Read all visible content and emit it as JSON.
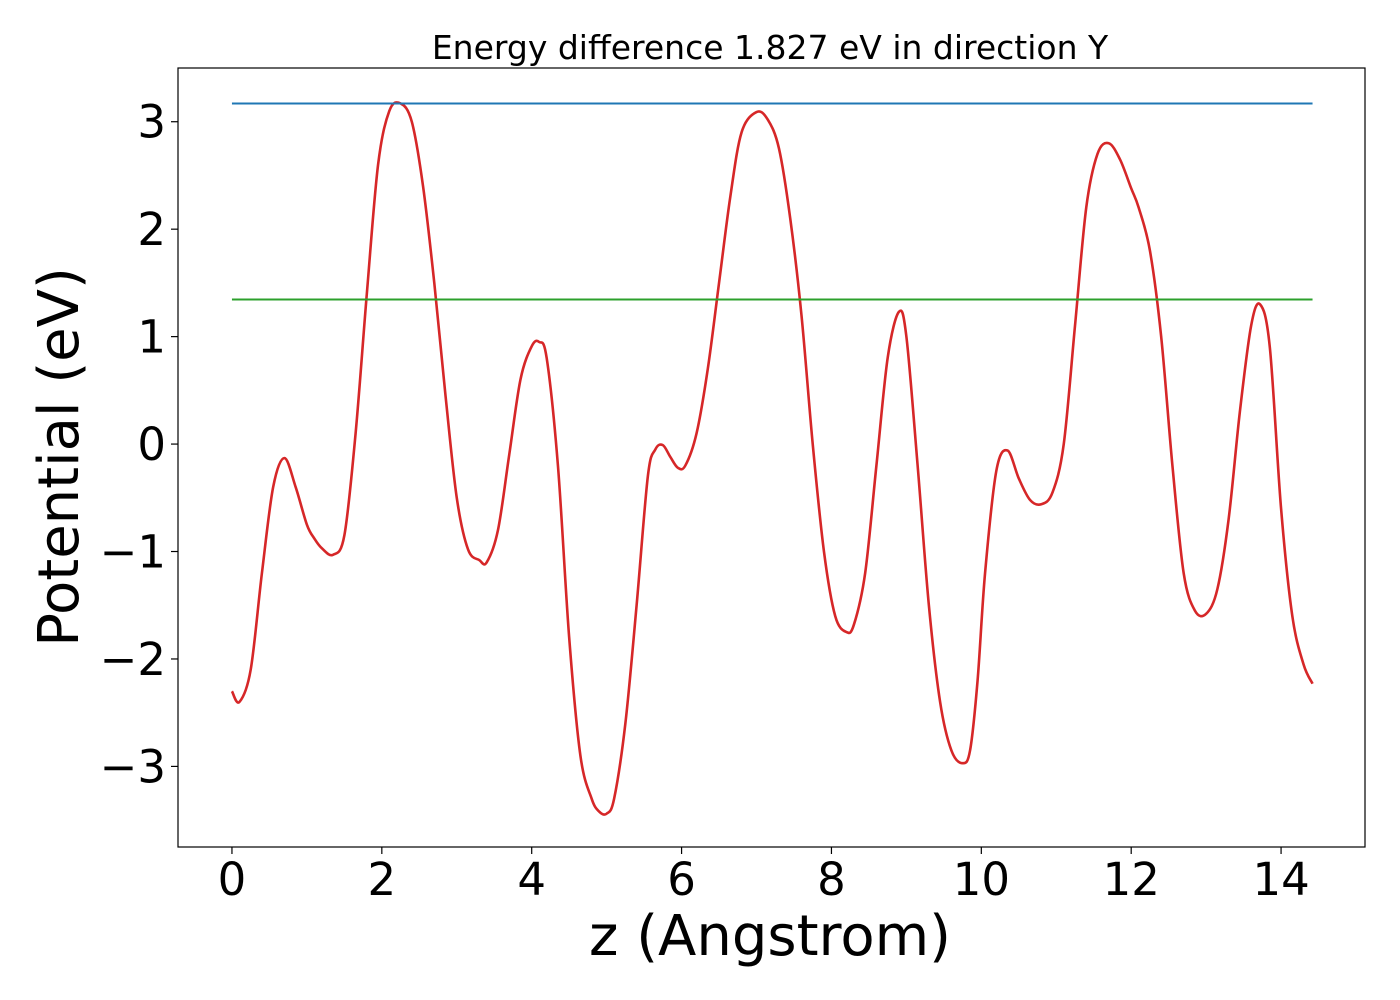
{
  "chart_data": {
    "type": "line",
    "title": "Energy difference 1.827 eV in direction Y",
    "xlabel": "z (Angstrom)",
    "ylabel": "Potential (eV)",
    "xlim": [
      -0.72,
      15.12
    ],
    "ylim": [
      -3.75,
      3.5
    ],
    "xticks": [
      0,
      2,
      4,
      6,
      8,
      10,
      12,
      14
    ],
    "yticks": [
      -3,
      -2,
      -1,
      0,
      1,
      2,
      3
    ],
    "xtick_labels": [
      "0",
      "2",
      "4",
      "6",
      "8",
      "10",
      "12",
      "14"
    ],
    "ytick_labels": [
      "−3",
      "−2",
      "−1",
      "0",
      "1",
      "2",
      "3"
    ],
    "grid": false,
    "series": [
      {
        "color": "#d62728",
        "x": [
          0,
          0.1,
          0.25,
          0.4,
          0.55,
          0.7,
          0.85,
          1.0,
          1.1,
          1.2,
          1.35,
          1.5,
          1.65,
          1.8,
          1.95,
          2.1,
          2.25,
          2.4,
          2.55,
          2.7,
          2.85,
          3.0,
          3.15,
          3.3,
          3.4,
          3.55,
          3.7,
          3.85,
          4.0,
          4.1,
          4.2,
          4.35,
          4.5,
          4.65,
          4.8,
          4.9,
          5.0,
          5.1,
          5.25,
          5.4,
          5.55,
          5.65,
          5.75,
          5.85,
          5.95,
          6.05,
          6.2,
          6.35,
          6.5,
          6.65,
          6.8,
          7.0,
          7.15,
          7.3,
          7.45,
          7.6,
          7.75,
          7.9,
          8.05,
          8.2,
          8.3,
          8.45,
          8.6,
          8.75,
          8.9,
          9.0,
          9.15,
          9.3,
          9.45,
          9.6,
          9.75,
          9.85,
          9.95,
          10.05,
          10.2,
          10.35,
          10.5,
          10.65,
          10.8,
          10.95,
          11.1,
          11.25,
          11.4,
          11.55,
          11.7,
          11.85,
          12.0,
          12.1,
          12.25,
          12.4,
          12.55,
          12.7,
          12.85,
          13.0,
          13.15,
          13.3,
          13.45,
          13.6,
          13.72,
          13.85,
          14.0,
          14.15,
          14.3,
          14.42
        ],
        "y": [
          -2.3,
          -2.4,
          -2.1,
          -1.2,
          -0.4,
          -0.13,
          -0.4,
          -0.75,
          -0.88,
          -0.97,
          -1.03,
          -0.85,
          0.1,
          1.4,
          2.6,
          3.1,
          3.17,
          3.0,
          2.4,
          1.5,
          0.45,
          -0.5,
          -0.98,
          -1.08,
          -1.1,
          -0.8,
          -0.1,
          0.6,
          0.91,
          0.95,
          0.8,
          -0.2,
          -1.8,
          -2.9,
          -3.3,
          -3.42,
          -3.44,
          -3.3,
          -2.6,
          -1.5,
          -0.3,
          -0.05,
          -0.01,
          -0.12,
          -0.22,
          -0.2,
          0.1,
          0.7,
          1.5,
          2.3,
          2.9,
          3.09,
          3.02,
          2.75,
          2.1,
          1.2,
          0.0,
          -1.0,
          -1.6,
          -1.75,
          -1.68,
          -1.2,
          -0.2,
          0.8,
          1.23,
          1.0,
          -0.2,
          -1.5,
          -2.4,
          -2.85,
          -2.97,
          -2.85,
          -2.2,
          -1.2,
          -0.25,
          -0.06,
          -0.32,
          -0.52,
          -0.56,
          -0.45,
          0.0,
          1.1,
          2.2,
          2.7,
          2.8,
          2.65,
          2.38,
          2.2,
          1.8,
          1.0,
          -0.2,
          -1.2,
          -1.55,
          -1.58,
          -1.35,
          -0.7,
          0.3,
          1.1,
          1.3,
          0.9,
          -0.6,
          -1.6,
          -2.05,
          -2.23
        ]
      },
      {
        "color": "#1f77b4",
        "x": [
          0,
          14.42
        ],
        "y": [
          3.17,
          3.17
        ]
      },
      {
        "color": "#2ca02c",
        "x": [
          0,
          14.42
        ],
        "y": [
          1.345,
          1.345
        ]
      }
    ]
  }
}
